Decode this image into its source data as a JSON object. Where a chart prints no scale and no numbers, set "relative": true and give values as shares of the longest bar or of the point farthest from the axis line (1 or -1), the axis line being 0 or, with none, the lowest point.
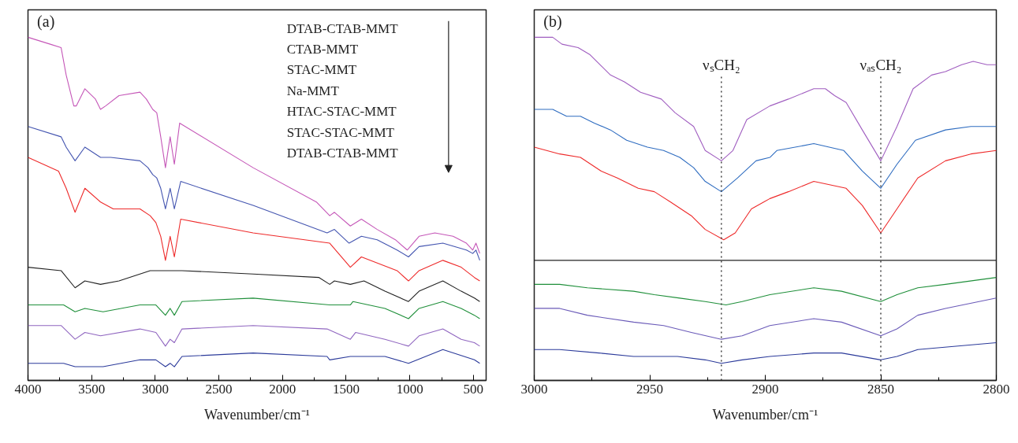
{
  "chart_data": [
    {
      "type": "line",
      "title": "(a)",
      "xlabel": "Wavenumber/cm⁻¹",
      "relative": true,
      "xlim": [
        4000,
        400
      ],
      "xticks": [
        4000,
        3500,
        3000,
        2500,
        2000,
        1500,
        1000,
        500
      ],
      "tick_labels": "x",
      "annotations": [
        "DTAB-CTAB-MMT",
        "CTAB-MMT",
        "STAC-MMT",
        "Na-MMT",
        "HTAC-STAC-MMT",
        "STAC-STAC-MMT",
        "DTAB-CTAB-MMT"
      ],
      "series": [
        {
          "color": "#c557b8",
          "x": [
            4000,
            3826,
            3740,
            3700,
            3640,
            3620,
            3553,
            3470,
            3430,
            3390,
            3285,
            3120,
            3070,
            3020,
            2988,
            2957,
            2920,
            2883,
            2850,
            2808,
            2231,
            1734,
            1629,
            1592,
            1467,
            1380,
            1256,
            1113,
            1020,
            927,
            803,
            660,
            555,
            505,
            480,
            450
          ],
          "values": [
            1.0,
            0.98,
            0.97,
            0.89,
            0.8,
            0.8,
            0.85,
            0.82,
            0.79,
            0.8,
            0.83,
            0.84,
            0.82,
            0.79,
            0.78,
            0.71,
            0.62,
            0.71,
            0.63,
            0.75,
            0.62,
            0.52,
            0.48,
            0.49,
            0.45,
            0.47,
            0.44,
            0.41,
            0.38,
            0.42,
            0.43,
            0.42,
            0.4,
            0.38,
            0.4,
            0.37
          ]
        },
        {
          "color": "#4455b0",
          "x": [
            4000,
            3740,
            3700,
            3630,
            3553,
            3430,
            3350,
            3120,
            3057,
            3020,
            2988,
            2957,
            2920,
            2883,
            2850,
            2800,
            2231,
            1650,
            1592,
            1477,
            1380,
            1256,
            1100,
            1010,
            927,
            740,
            555,
            505,
            480,
            450
          ],
          "values": [
            0.74,
            0.71,
            0.68,
            0.64,
            0.68,
            0.65,
            0.65,
            0.64,
            0.62,
            0.6,
            0.59,
            0.56,
            0.5,
            0.56,
            0.5,
            0.58,
            0.51,
            0.43,
            0.44,
            0.4,
            0.42,
            0.41,
            0.38,
            0.36,
            0.39,
            0.4,
            0.38,
            0.37,
            0.38,
            0.35
          ]
        },
        {
          "color": "#ee2a2a",
          "x": [
            4000,
            3760,
            3700,
            3630,
            3553,
            3430,
            3330,
            3120,
            3040,
            2995,
            2957,
            2920,
            2883,
            2850,
            2800,
            2231,
            1629,
            1467,
            1380,
            1100,
            1010,
            927,
            740,
            596,
            492,
            450
          ],
          "values": [
            0.65,
            0.61,
            0.56,
            0.49,
            0.56,
            0.52,
            0.5,
            0.5,
            0.48,
            0.46,
            0.42,
            0.35,
            0.42,
            0.36,
            0.47,
            0.43,
            0.4,
            0.33,
            0.36,
            0.32,
            0.29,
            0.32,
            0.35,
            0.33,
            0.3,
            0.29
          ]
        },
        {
          "color": "#222222",
          "x": [
            4000,
            3740,
            3630,
            3553,
            3430,
            3285,
            3040,
            2790,
            2231,
            1713,
            1629,
            1592,
            1467,
            1360,
            1195,
            1010,
            927,
            740,
            596,
            492,
            450
          ],
          "values": [
            0.33,
            0.32,
            0.27,
            0.29,
            0.28,
            0.29,
            0.32,
            0.32,
            0.31,
            0.3,
            0.28,
            0.29,
            0.28,
            0.29,
            0.26,
            0.23,
            0.26,
            0.29,
            0.26,
            0.24,
            0.23
          ]
        },
        {
          "color": "#1f8f3a",
          "x": [
            4000,
            3720,
            3630,
            3553,
            3410,
            3120,
            2995,
            2920,
            2883,
            2850,
            2790,
            2231,
            1629,
            1467,
            1446,
            1195,
            1010,
            927,
            740,
            596,
            492,
            450
          ],
          "values": [
            0.22,
            0.22,
            0.2,
            0.21,
            0.2,
            0.22,
            0.22,
            0.19,
            0.21,
            0.19,
            0.23,
            0.24,
            0.22,
            0.22,
            0.23,
            0.21,
            0.18,
            0.21,
            0.23,
            0.21,
            0.19,
            0.18
          ]
        },
        {
          "color": "#9066c0",
          "x": [
            4000,
            3740,
            3630,
            3553,
            3430,
            3120,
            2995,
            2920,
            2883,
            2850,
            2790,
            2231,
            1650,
            1467,
            1425,
            1195,
            1010,
            927,
            740,
            596,
            492,
            450
          ],
          "values": [
            0.16,
            0.16,
            0.12,
            0.14,
            0.13,
            0.15,
            0.14,
            0.1,
            0.12,
            0.11,
            0.15,
            0.16,
            0.15,
            0.12,
            0.14,
            0.12,
            0.1,
            0.13,
            0.15,
            0.12,
            0.11,
            0.1
          ]
        },
        {
          "color": "#2b3a9a",
          "x": [
            4000,
            3720,
            3630,
            3410,
            3120,
            2995,
            2920,
            2883,
            2850,
            2790,
            2231,
            1650,
            1629,
            1467,
            1195,
            1010,
            740,
            492,
            450
          ],
          "values": [
            0.05,
            0.05,
            0.04,
            0.04,
            0.06,
            0.06,
            0.04,
            0.05,
            0.04,
            0.07,
            0.08,
            0.07,
            0.06,
            0.07,
            0.07,
            0.05,
            0.09,
            0.06,
            0.05
          ]
        }
      ]
    },
    {
      "type": "line",
      "title": "(b)",
      "xlabel": "Wavenumber/cm⁻¹",
      "relative": true,
      "xlim": [
        3000,
        2800
      ],
      "xticks": [
        3000,
        2950,
        2900,
        2850,
        2800
      ],
      "tick_labels": "x",
      "ref_lines": [
        {
          "axis": "x",
          "value": 2919,
          "label": "νₛCH₂",
          "line_style": "dotted"
        },
        {
          "axis": "x",
          "value": 2850,
          "label": "νₐₛCH₂",
          "line_style": "dotted"
        }
      ],
      "series": [
        {
          "color": "#a05ec0",
          "x": [
            3000,
            2992,
            2988,
            2981,
            2976,
            2967,
            2961,
            2954,
            2945,
            2939,
            2931,
            2926,
            2919,
            2914,
            2908,
            2898,
            2890,
            2879,
            2874,
            2870,
            2865,
            2858,
            2850,
            2843,
            2836,
            2828,
            2822,
            2815,
            2810,
            2804,
            2800
          ],
          "values": [
            1.0,
            1.0,
            0.98,
            0.97,
            0.95,
            0.89,
            0.87,
            0.84,
            0.82,
            0.78,
            0.74,
            0.67,
            0.64,
            0.67,
            0.76,
            0.8,
            0.82,
            0.85,
            0.85,
            0.83,
            0.81,
            0.73,
            0.64,
            0.74,
            0.85,
            0.89,
            0.9,
            0.92,
            0.93,
            0.92,
            0.92
          ]
        },
        {
          "color": "#2e6cc0",
          "x": [
            3000,
            2992,
            2986,
            2980,
            2974,
            2967,
            2960,
            2951,
            2944,
            2937,
            2931,
            2926,
            2919,
            2912,
            2904,
            2898,
            2895,
            2879,
            2866,
            2858,
            2850,
            2843,
            2835,
            2822,
            2811,
            2800
          ],
          "values": [
            0.79,
            0.79,
            0.77,
            0.77,
            0.75,
            0.73,
            0.7,
            0.68,
            0.67,
            0.65,
            0.62,
            0.58,
            0.55,
            0.59,
            0.64,
            0.65,
            0.67,
            0.69,
            0.67,
            0.61,
            0.56,
            0.63,
            0.7,
            0.73,
            0.74,
            0.74
          ]
        },
        {
          "color": "#ee2a2a",
          "x": [
            3000,
            2989,
            2980,
            2971,
            2964,
            2955,
            2948,
            2941,
            2932,
            2926,
            2918,
            2913,
            2906,
            2898,
            2890,
            2879,
            2865,
            2858,
            2850,
            2843,
            2834,
            2822,
            2811,
            2800
          ],
          "values": [
            0.68,
            0.66,
            0.65,
            0.61,
            0.59,
            0.56,
            0.55,
            0.52,
            0.48,
            0.44,
            0.41,
            0.43,
            0.5,
            0.53,
            0.55,
            0.58,
            0.56,
            0.51,
            0.43,
            0.5,
            0.59,
            0.64,
            0.66,
            0.67
          ]
        },
        {
          "color": "#222222",
          "x": [
            3000,
            2919,
            2800
          ],
          "values": [
            0.35,
            0.35,
            0.35
          ]
        },
        {
          "color": "#1f8f3a",
          "x": [
            3000,
            2989,
            2977,
            2957,
            2948,
            2937,
            2926,
            2917,
            2910,
            2898,
            2879,
            2867,
            2850,
            2843,
            2834,
            2822,
            2800
          ],
          "values": [
            0.28,
            0.28,
            0.27,
            0.26,
            0.25,
            0.24,
            0.23,
            0.22,
            0.23,
            0.25,
            0.27,
            0.26,
            0.23,
            0.25,
            0.27,
            0.28,
            0.3
          ]
        },
        {
          "color": "#6a5ab8",
          "x": [
            3000,
            2989,
            2977,
            2957,
            2944,
            2932,
            2919,
            2910,
            2898,
            2879,
            2867,
            2850,
            2843,
            2834,
            2822,
            2800
          ],
          "values": [
            0.21,
            0.21,
            0.19,
            0.17,
            0.16,
            0.14,
            0.12,
            0.13,
            0.16,
            0.18,
            0.17,
            0.13,
            0.15,
            0.19,
            0.21,
            0.24
          ]
        },
        {
          "color": "#2b3a9a",
          "x": [
            3000,
            2989,
            2972,
            2957,
            2938,
            2926,
            2919,
            2910,
            2898,
            2879,
            2867,
            2850,
            2843,
            2834,
            2800
          ],
          "values": [
            0.09,
            0.09,
            0.08,
            0.07,
            0.07,
            0.06,
            0.05,
            0.06,
            0.07,
            0.08,
            0.08,
            0.06,
            0.07,
            0.09,
            0.11
          ]
        }
      ]
    }
  ]
}
